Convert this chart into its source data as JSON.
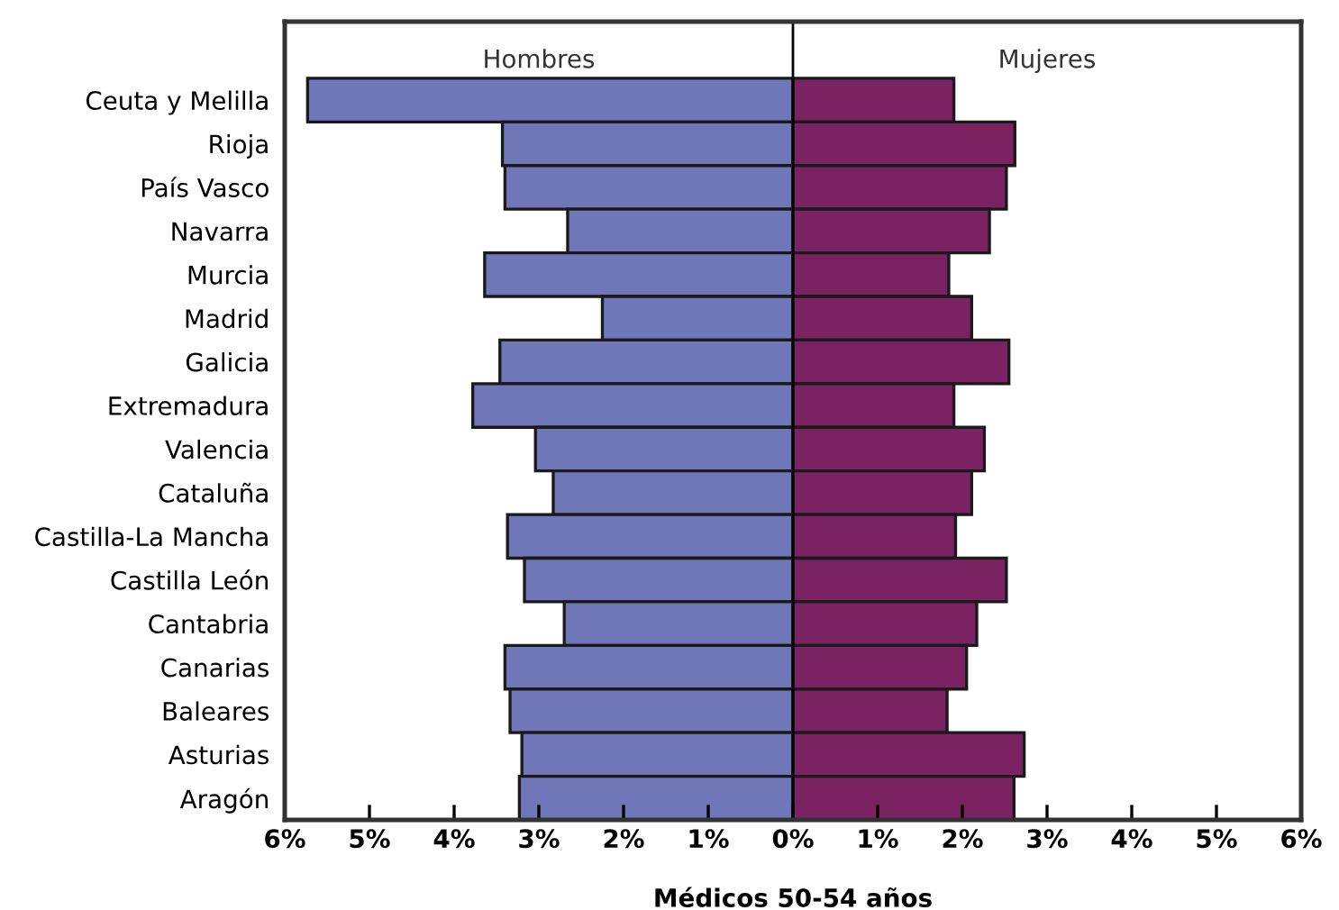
{
  "chart_data": {
    "type": "bar",
    "orientation": "horizontal",
    "xlabel": "Médicos 50-54 años",
    "categories": [
      "Ceuta y Melilla",
      "Rioja",
      "País Vasco",
      "Navarra",
      "Murcia",
      "Madrid",
      "Galicia",
      "Extremadura",
      "Valencia",
      "Cataluña",
      "Castilla-La Mancha",
      "Castilla León",
      "Cantabria",
      "Canarias",
      "Baleares",
      "Asturias",
      "Aragón"
    ],
    "series": [
      {
        "name": "Hombres",
        "color": "#7077b8",
        "values": [
          -5.73,
          -3.43,
          -3.4,
          -2.66,
          -3.64,
          -2.25,
          -3.46,
          -3.78,
          -3.04,
          -2.83,
          -3.37,
          -3.17,
          -2.7,
          -3.4,
          -3.34,
          -3.2,
          -3.23
        ]
      },
      {
        "name": "Mujeres",
        "color": "#7a2262",
        "values": [
          1.9,
          2.62,
          2.52,
          2.32,
          1.84,
          2.11,
          2.55,
          1.9,
          2.26,
          2.11,
          1.92,
          2.52,
          2.17,
          2.05,
          1.82,
          2.73,
          2.61
        ]
      }
    ],
    "xlim": [
      -6,
      6
    ],
    "xticks": [
      {
        "value": -6,
        "label": "6%"
      },
      {
        "value": -5,
        "label": "5%"
      },
      {
        "value": -4,
        "label": "4%"
      },
      {
        "value": -3,
        "label": "3%"
      },
      {
        "value": -2,
        "label": "2%"
      },
      {
        "value": -1,
        "label": "1%"
      },
      {
        "value": 0,
        "label": "0%"
      },
      {
        "value": 1,
        "label": "1%"
      },
      {
        "value": 2,
        "label": "2%"
      },
      {
        "value": 3,
        "label": "3%"
      },
      {
        "value": 4,
        "label": "4%"
      },
      {
        "value": 5,
        "label": "5%"
      },
      {
        "value": 6,
        "label": "6%"
      }
    ],
    "ref_lines": [
      {
        "axis": "x",
        "value": 0,
        "color": "#000000"
      }
    ],
    "stacked": true,
    "grid": false
  }
}
